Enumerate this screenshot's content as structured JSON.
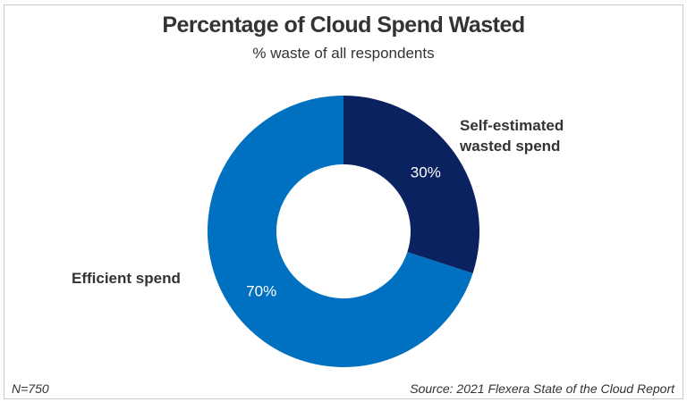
{
  "chart_data": {
    "type": "pie",
    "donut": true,
    "title": "Percentage of Cloud Spend Wasted",
    "subtitle": "% waste of all respondents",
    "slices": [
      {
        "label": "Self-estimated wasted spend",
        "label_lines": [
          "Self-estimated",
          "wasted spend"
        ],
        "value": 30,
        "data_label": "30%",
        "color": "#0a2260"
      },
      {
        "label": "Efficient spend",
        "label_lines": [
          "Efficient spend"
        ],
        "value": 70,
        "data_label": "70%",
        "color": "#0070c0"
      }
    ],
    "footnote_left": "N=750",
    "footnote_right": "Source: 2021 Flexera State of the Cloud Report"
  }
}
